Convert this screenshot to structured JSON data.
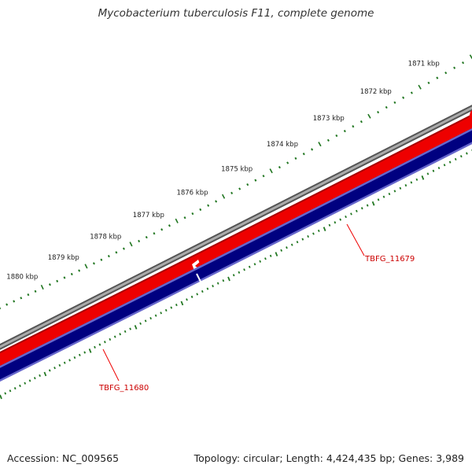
{
  "title": "Mycobacterium tuberculosis F11, complete genome",
  "footer": {
    "accession": "Accession: NC_009565",
    "summary": "Topology: circular; Length: 4,424,435 bp; Genes: 3,989"
  },
  "ruler": {
    "labels": [
      "1871 kbp",
      "1872 kbp",
      "1873 kbp",
      "1874 kbp",
      "1875 kbp",
      "1876 kbp",
      "1877 kbp",
      "1878 kbp",
      "1879 kbp",
      "1880 kbp"
    ],
    "tick_color": "#227722"
  },
  "genes": [
    {
      "name": "TBFG_11679",
      "strand": "reverse",
      "color": "#ee0000"
    },
    {
      "name": "TBFG_11680",
      "strand": "reverse",
      "color": "#ee0000"
    }
  ],
  "tracks": {
    "backbone_color": "#888888",
    "gene_color": "#ee0000",
    "cds_color": "#000080"
  }
}
